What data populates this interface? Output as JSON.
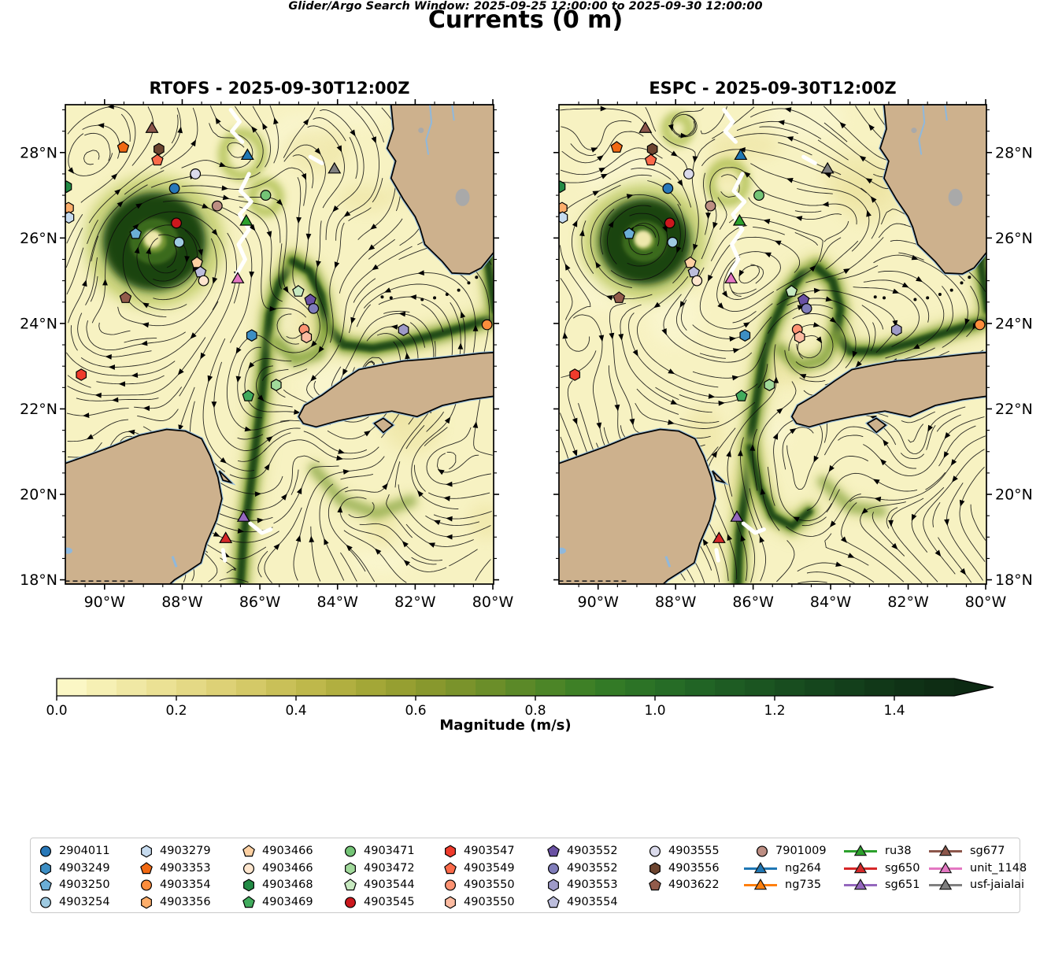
{
  "chart_data": {
    "type": "map-streamplot",
    "title": "Currents (0 m)",
    "depth_label": "0 m",
    "panels": [
      {
        "model": "RTOFS",
        "time": "2025-09-30T12:00Z",
        "title": "RTOFS - 2025-09-30T12:00Z"
      },
      {
        "model": "ESPC",
        "time": "2025-09-30T12:00Z",
        "title": "ESPC - 2025-09-30T12:00Z"
      }
    ],
    "lon_axis": {
      "tick_labels": [
        "90°W",
        "88°W",
        "86°W",
        "84°W",
        "82°W",
        "80°W"
      ],
      "tick_values_deg_w": [
        90,
        88,
        86,
        84,
        82,
        80
      ],
      "range_deg_w": [
        91.01,
        79.98
      ]
    },
    "lat_axis": {
      "tick_labels": [
        "28°N",
        "26°N",
        "24°N",
        "22°N",
        "20°N",
        "18°N"
      ],
      "tick_values_deg_n": [
        28,
        26,
        24,
        22,
        20,
        18
      ],
      "range_deg_n": [
        17.9,
        29.12
      ]
    },
    "colorbar": {
      "label": "Magnitude (m/s)",
      "tick_labels": [
        "0.0",
        "0.2",
        "0.4",
        "0.6",
        "0.8",
        "1.0",
        "1.2",
        "1.4"
      ],
      "tick_values": [
        0.0,
        0.2,
        0.4,
        0.6,
        0.8,
        1.0,
        1.2,
        1.4
      ],
      "range": [
        0.0,
        1.5
      ],
      "extend": "max",
      "colors": [
        "#fdfacd",
        "#f3ecac",
        "#e8dd8c",
        "#d9cd6e",
        "#c4bc51",
        "#aaab3a",
        "#8f9b2e",
        "#73902a",
        "#538727",
        "#377d26",
        "#287026",
        "#1f6024",
        "#195120",
        "#14421c",
        "#103417",
        "#0d2a13"
      ]
    },
    "annotation": "Glider/Argo Search Window: 2025-09-25 12:00:00 to 2025-09-30 12:00:00",
    "legend": {
      "columns": [
        [
          {
            "label": "2904011",
            "marker": "circle",
            "color": "#2878b8"
          },
          {
            "label": "4903249",
            "marker": "hexagon",
            "color": "#3d8ec4"
          },
          {
            "label": "4903250",
            "marker": "pentagon",
            "color": "#6baed6"
          },
          {
            "label": "4903254",
            "marker": "circle",
            "color": "#9ecae1"
          }
        ],
        [
          {
            "label": "4903279",
            "marker": "hexagon",
            "color": "#c6dbef"
          },
          {
            "label": "4903353",
            "marker": "pentagon",
            "color": "#f16913"
          },
          {
            "label": "4903354",
            "marker": "circle",
            "color": "#fd8d3c"
          },
          {
            "label": "4903356",
            "marker": "hexagon",
            "color": "#fdae6b"
          }
        ],
        [
          {
            "label": "4903466",
            "marker": "pentagon",
            "color": "#fdd0a2"
          },
          {
            "label": "4903466",
            "marker": "circle",
            "color": "#fee6ce"
          },
          {
            "label": "4903468",
            "marker": "hexagon",
            "color": "#238b45"
          },
          {
            "label": "4903469",
            "marker": "pentagon",
            "color": "#41ab5d"
          }
        ],
        [
          {
            "label": "4903471",
            "marker": "circle",
            "color": "#74c476"
          },
          {
            "label": "4903472",
            "marker": "hexagon",
            "color": "#a1d99b"
          },
          {
            "label": "4903544",
            "marker": "pentagon",
            "color": "#c7e9c0"
          },
          {
            "label": "4903545",
            "marker": "circle",
            "color": "#cb181d"
          }
        ],
        [
          {
            "label": "4903547",
            "marker": "hexagon",
            "color": "#ef3b2c"
          },
          {
            "label": "4903549",
            "marker": "pentagon",
            "color": "#fb6a4a"
          },
          {
            "label": "4903550",
            "marker": "circle",
            "color": "#fc9272"
          },
          {
            "label": "4903550",
            "marker": "hexagon",
            "color": "#fcbba1"
          }
        ],
        [
          {
            "label": "4903552",
            "marker": "pentagon",
            "color": "#6a51a3"
          },
          {
            "label": "4903552",
            "marker": "circle",
            "color": "#807dba"
          },
          {
            "label": "4903553",
            "marker": "hexagon",
            "color": "#9e9ac8"
          },
          {
            "label": "4903554",
            "marker": "pentagon",
            "color": "#bcbddc"
          }
        ],
        [
          {
            "label": "4903555",
            "marker": "circle",
            "color": "#dadaeb"
          },
          {
            "label": "4903556",
            "marker": "hexagon",
            "color": "#6d4530"
          },
          {
            "label": "4903622",
            "marker": "pentagon",
            "color": "#925b4b"
          }
        ],
        [
          {
            "label": "7901009",
            "marker": "circle",
            "color": "#bd8e83"
          },
          {
            "label": "ng264",
            "marker": "triangle",
            "color": "#1f77b4",
            "line": true
          },
          {
            "label": "ng735",
            "marker": "triangle",
            "color": "#ff7f0e",
            "line": true
          }
        ],
        [
          {
            "label": "ru38",
            "marker": "triangle",
            "color": "#2ca02c",
            "line": true
          },
          {
            "label": "sg650",
            "marker": "triangle",
            "color": "#d62728",
            "line": true
          },
          {
            "label": "sg651",
            "marker": "triangle",
            "color": "#9467bd",
            "line": true
          }
        ],
        [
          {
            "label": "sg677",
            "marker": "triangle",
            "color": "#8c564b",
            "line": true
          },
          {
            "label": "unit_1148",
            "marker": "triangle",
            "color": "#e377c2",
            "line": true
          },
          {
            "label": "usf-jaialai",
            "marker": "triangle",
            "color": "#7f7f7f",
            "line": true
          }
        ]
      ]
    },
    "map_markers": [
      {
        "id": "sg677",
        "shape": "triangle",
        "color": "#8c564b",
        "lon_w": 88.78,
        "lat_n": 28.55
      },
      {
        "id": "4903353",
        "shape": "pentagon",
        "color": "#f16913",
        "lon_w": 89.52,
        "lat_n": 28.12
      },
      {
        "id": "4903556",
        "shape": "hexagon",
        "color": "#6d4530",
        "lon_w": 88.6,
        "lat_n": 28.08
      },
      {
        "id": "4903549",
        "shape": "pentagon",
        "color": "#fb6a4a",
        "lon_w": 88.64,
        "lat_n": 27.82
      },
      {
        "id": "4903555",
        "shape": "circle",
        "color": "#dadaeb",
        "lon_w": 87.66,
        "lat_n": 27.5
      },
      {
        "id": "ng264",
        "shape": "triangle",
        "color": "#1f77b4",
        "lon_w": 86.32,
        "lat_n": 27.92
      },
      {
        "id": "usf-jaialai",
        "shape": "triangle",
        "color": "#7f7f7f",
        "lon_w": 84.08,
        "lat_n": 27.6
      },
      {
        "id": "4903468",
        "shape": "hexagon",
        "color": "#238b45",
        "lon_w": 90.98,
        "lat_n": 27.2
      },
      {
        "id": "2904011",
        "shape": "circle",
        "color": "#2878b8",
        "lon_w": 88.2,
        "lat_n": 27.16
      },
      {
        "id": "4903471",
        "shape": "circle",
        "color": "#74c476",
        "lon_w": 85.85,
        "lat_n": 27.0
      },
      {
        "id": "7901009",
        "shape": "circle",
        "color": "#bd8e83",
        "lon_w": 87.1,
        "lat_n": 26.75
      },
      {
        "id": "ru38",
        "shape": "triangle",
        "color": "#2ca02c",
        "lon_w": 86.35,
        "lat_n": 26.38
      },
      {
        "id": "4903545",
        "shape": "circle",
        "color": "#cb181d",
        "lon_w": 88.15,
        "lat_n": 26.35
      },
      {
        "id": "4903356",
        "shape": "hexagon",
        "color": "#fdae6b",
        "lon_w": 90.93,
        "lat_n": 26.7
      },
      {
        "id": "4903279",
        "shape": "hexagon",
        "color": "#c6dbef",
        "lon_w": 90.92,
        "lat_n": 26.48
      },
      {
        "id": "4903250",
        "shape": "pentagon",
        "color": "#6baed6",
        "lon_w": 89.2,
        "lat_n": 26.1
      },
      {
        "id": "4903254",
        "shape": "circle",
        "color": "#9ecae1",
        "lon_w": 88.08,
        "lat_n": 25.9
      },
      {
        "id": "4903466",
        "shape": "pentagon",
        "color": "#fdd0a2",
        "lon_w": 87.62,
        "lat_n": 25.42
      },
      {
        "id": "4903554",
        "shape": "pentagon",
        "color": "#bcbddc",
        "lon_w": 87.53,
        "lat_n": 25.2
      },
      {
        "id": "4903466",
        "shape": "circle",
        "color": "#fee6ce",
        "lon_w": 87.45,
        "lat_n": 25.0
      },
      {
        "id": "unit_1148",
        "shape": "triangle",
        "color": "#e377c2",
        "lon_w": 86.57,
        "lat_n": 25.03
      },
      {
        "id": "4903622",
        "shape": "pentagon",
        "color": "#925b4b",
        "lon_w": 89.46,
        "lat_n": 24.6
      },
      {
        "id": "4903544",
        "shape": "pentagon",
        "color": "#c7e9c0",
        "lon_w": 85.01,
        "lat_n": 24.75
      },
      {
        "id": "4903552",
        "shape": "pentagon",
        "color": "#6a51a3",
        "lon_w": 84.7,
        "lat_n": 24.55
      },
      {
        "id": "4903552",
        "shape": "circle",
        "color": "#807dba",
        "lon_w": 84.62,
        "lat_n": 24.35
      },
      {
        "id": "4903550",
        "shape": "circle",
        "color": "#fc9272",
        "lon_w": 84.86,
        "lat_n": 23.86
      },
      {
        "id": "4903550",
        "shape": "hexagon",
        "color": "#fcbba1",
        "lon_w": 84.8,
        "lat_n": 23.68
      },
      {
        "id": "4903249",
        "shape": "hexagon",
        "color": "#3d8ec4",
        "lon_w": 86.21,
        "lat_n": 23.72
      },
      {
        "id": "4903553",
        "shape": "hexagon",
        "color": "#9e9ac8",
        "lon_w": 82.3,
        "lat_n": 23.85
      },
      {
        "id": "4903354",
        "shape": "circle",
        "color": "#fd8d3c",
        "lon_w": 80.15,
        "lat_n": 23.97
      },
      {
        "id": "4903472",
        "shape": "hexagon",
        "color": "#a1d99b",
        "lon_w": 85.58,
        "lat_n": 22.56
      },
      {
        "id": "4903469",
        "shape": "pentagon",
        "color": "#41ab5d",
        "lon_w": 86.3,
        "lat_n": 22.3
      },
      {
        "id": "4903547",
        "shape": "hexagon",
        "color": "#ef3b2c",
        "lon_w": 90.6,
        "lat_n": 22.8
      },
      {
        "id": "sg651",
        "shape": "triangle",
        "color": "#9467bd",
        "lon_w": 86.42,
        "lat_n": 19.45
      },
      {
        "id": "sg650",
        "shape": "triangle",
        "color": "#d62728",
        "lon_w": 86.88,
        "lat_n": 18.95
      }
    ],
    "glider_tracks": [
      [
        [
          86.75,
          29.0
        ],
        [
          86.52,
          28.72
        ],
        [
          86.72,
          28.5
        ],
        [
          86.45,
          28.25
        ]
      ],
      [
        [
          86.28,
          27.5
        ],
        [
          86.5,
          27.1
        ],
        [
          86.22,
          26.85
        ],
        [
          86.52,
          26.55
        ],
        [
          86.28,
          26.2
        ],
        [
          86.55,
          25.85
        ],
        [
          86.38,
          25.5
        ],
        [
          86.6,
          25.15
        ]
      ],
      [
        [
          84.7,
          27.9
        ],
        [
          84.4,
          27.75
        ]
      ],
      [
        [
          86.25,
          19.32
        ],
        [
          85.95,
          19.1
        ],
        [
          85.72,
          19.18
        ]
      ],
      [
        [
          86.95,
          18.7
        ],
        [
          86.9,
          18.45
        ]
      ]
    ]
  }
}
